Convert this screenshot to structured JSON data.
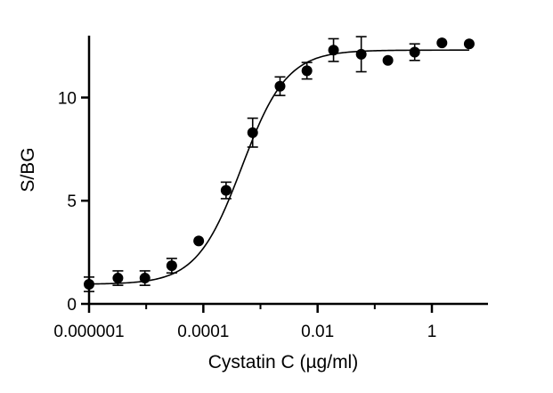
{
  "chart_data": {
    "type": "scatter",
    "title": "",
    "xlabel": "Cystatin C (µg/ml)",
    "ylabel": "S/BG",
    "x_scale": "log10",
    "xlim": [
      1e-06,
      5
    ],
    "ylim": [
      0,
      13
    ],
    "x_ticks": [
      1e-06,
      0.0001,
      0.01,
      1
    ],
    "x_tick_labels": [
      "0.000001",
      "0.0001",
      "0.01",
      "1"
    ],
    "y_ticks": [
      0,
      5,
      10
    ],
    "y_tick_labels": [
      "0",
      "5",
      "10"
    ],
    "grid": false,
    "legend": "none",
    "points": [
      {
        "x": 1e-06,
        "y": 0.95,
        "err": 0.35
      },
      {
        "x": 3.2e-06,
        "y": 1.25,
        "err": 0.35
      },
      {
        "x": 9.5e-06,
        "y": 1.25,
        "err": 0.35
      },
      {
        "x": 2.8e-05,
        "y": 1.85,
        "err": 0.35
      },
      {
        "x": 8.3e-05,
        "y": 3.05,
        "err": 0
      },
      {
        "x": 0.00025,
        "y": 5.5,
        "err": 0.4
      },
      {
        "x": 0.00073,
        "y": 8.3,
        "err": 0.7
      },
      {
        "x": 0.0022,
        "y": 10.55,
        "err": 0.45
      },
      {
        "x": 0.0065,
        "y": 11.3,
        "err": 0.4
      },
      {
        "x": 0.019,
        "y": 12.3,
        "err": 0.55
      },
      {
        "x": 0.058,
        "y": 12.1,
        "err": 0.85
      },
      {
        "x": 0.17,
        "y": 11.8,
        "err": 0
      },
      {
        "x": 0.5,
        "y": 12.2,
        "err": 0.4
      },
      {
        "x": 1.5,
        "y": 12.65,
        "err": 0
      },
      {
        "x": 4.5,
        "y": 12.6,
        "err": 0
      }
    ],
    "fit": {
      "type": "4PL",
      "bottom": 0.95,
      "top": 12.3,
      "ec50": 0.00047,
      "hill": 1.1
    },
    "colors": {
      "marker": "#000000",
      "line": "#000000"
    }
  }
}
